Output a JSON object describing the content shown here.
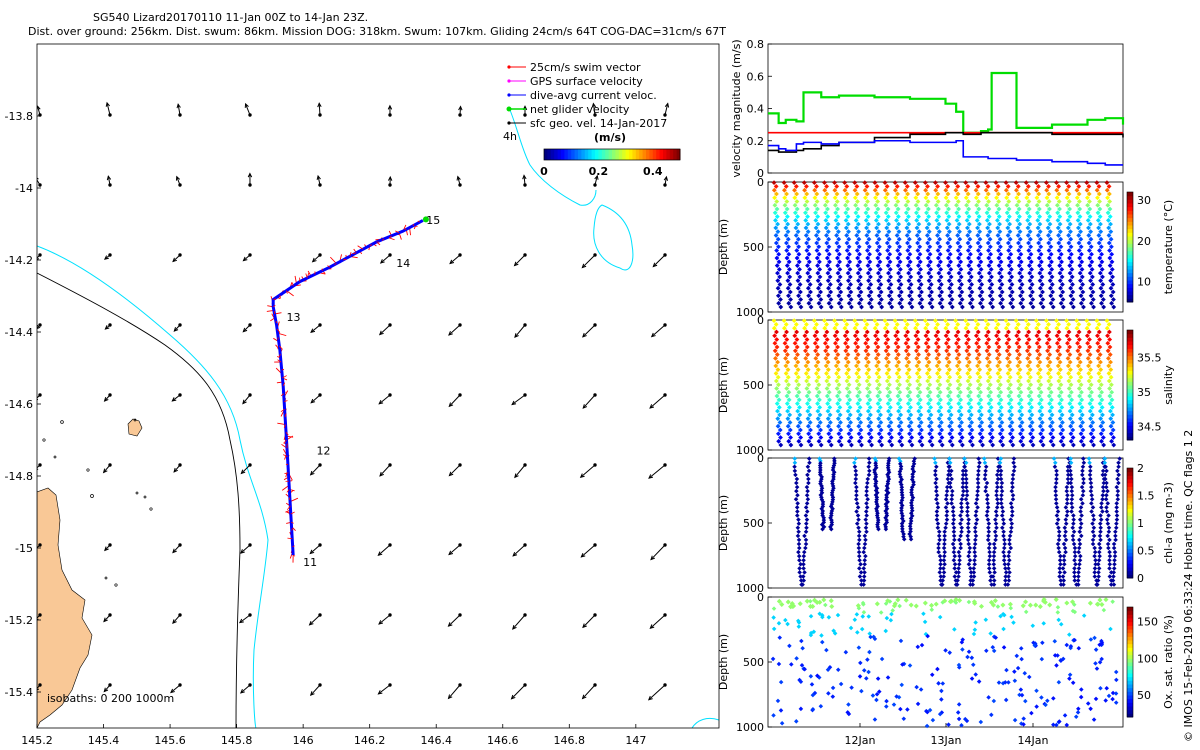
{
  "header": {
    "title": "SG540 Lizard20170110 11-Jan 00Z to 14-Jan 23Z.",
    "subtitle": "Dist. over ground: 256km. Dist. swum: 86km. Mission DOG: 318km. Swum: 107km. Gliding 24cm/s 64T COG-DAC=31cm/s 67T"
  },
  "colors": {
    "land": "#f9c896",
    "coast_cyan": "#00e1ff",
    "isobath_black": "#000000",
    "track_blue": "#0000ff",
    "swim_red": "#ff0000",
    "gps_magenta": "#ff00ff",
    "net_green": "#00dd00"
  },
  "chart_data": [
    {
      "id": "map",
      "type": "scatter",
      "title": "Glider track map",
      "xlabel": "",
      "ylabel": "",
      "xlim": [
        145.2,
        147.25
      ],
      "ylim": [
        -15.5,
        -13.6
      ],
      "x_ticks": [
        "145.2",
        "145.4",
        "145.6",
        "145.8",
        "146",
        "146.2",
        "146.4",
        "146.6",
        "146.8",
        "147"
      ],
      "y_ticks": [
        "-13.8",
        "-14",
        "-14.2",
        "-14.4",
        "-14.6",
        "-14.8",
        "-15",
        "-15.2",
        "-15.4"
      ],
      "legend": {
        "position": "top-right",
        "items": [
          {
            "label": "25cm/s swim vector",
            "color": "#ff0000"
          },
          {
            "label": "GPS surface velocity",
            "color": "#ff00ff"
          },
          {
            "label": "dive-avg current veloc.",
            "color": "#0000ff"
          },
          {
            "label": "net glider velocity",
            "color": "#00dd00"
          },
          {
            "label": "sfc geo. vel. 14-Jan-2017",
            "color": "#000000"
          }
        ],
        "label_4h": "4h"
      },
      "colorbar": {
        "label": "(m/s)",
        "ticks": [
          "0",
          "0.2",
          "0.4"
        ],
        "range": [
          0,
          0.5
        ]
      },
      "isobath_label": "isobaths: 0   200  1000m",
      "track": {
        "lons": [
          145.97,
          145.96,
          145.95,
          145.94,
          145.93,
          145.92,
          145.91,
          145.91,
          145.99,
          146.08,
          146.16,
          146.22,
          146.3,
          146.36
        ],
        "lats": [
          -15.02,
          -14.86,
          -14.7,
          -14.55,
          -14.45,
          -14.38,
          -14.33,
          -14.31,
          -14.26,
          -14.22,
          -14.18,
          -14.15,
          -14.12,
          -14.09
        ]
      },
      "day_labels": [
        {
          "text": "11",
          "lon": 146.0,
          "lat": -15.05
        },
        {
          "text": "12",
          "lon": 146.04,
          "lat": -14.74
        },
        {
          "text": "13",
          "lon": 145.95,
          "lat": -14.37
        },
        {
          "text": "14",
          "lon": 146.28,
          "lat": -14.22
        },
        {
          "text": "15",
          "lon": 146.37,
          "lat": -14.1
        }
      ]
    },
    {
      "id": "velocity",
      "type": "line",
      "ylabel": "velocity magnitude (m/s)",
      "ylim": [
        0,
        0.8
      ],
      "y_ticks": [
        "0",
        "0.2",
        "0.4",
        "0.6",
        "0.8"
      ],
      "x": [
        0,
        0.03,
        0.05,
        0.08,
        0.1,
        0.15,
        0.2,
        0.3,
        0.4,
        0.5,
        0.53,
        0.55,
        0.6,
        0.62,
        0.63,
        0.7,
        0.8,
        0.9,
        0.95,
        1.0
      ],
      "series": [
        {
          "name": "net glider velocity",
          "color": "#00dd00",
          "values": [
            0.37,
            0.31,
            0.33,
            0.32,
            0.5,
            0.47,
            0.48,
            0.47,
            0.46,
            0.43,
            0.38,
            0.25,
            0.26,
            0.27,
            0.62,
            0.28,
            0.3,
            0.33,
            0.34,
            0.3
          ]
        },
        {
          "name": "swim 25cm/s",
          "color": "#ff0000",
          "values": [
            0.25,
            0.25,
            0.25,
            0.25,
            0.25,
            0.25,
            0.25,
            0.25,
            0.25,
            0.25,
            0.25,
            0.25,
            0.25,
            0.25,
            0.25,
            0.25,
            0.25,
            0.25,
            0.25,
            0.25
          ]
        },
        {
          "name": "surface geostrophic",
          "color": "#000000",
          "values": [
            0.14,
            0.13,
            0.13,
            0.14,
            0.15,
            0.17,
            0.19,
            0.22,
            0.24,
            0.25,
            0.25,
            0.24,
            0.25,
            0.25,
            0.25,
            0.25,
            0.24,
            0.24,
            0.24,
            0.22
          ]
        },
        {
          "name": "dive-avg current",
          "color": "#0000ff",
          "values": [
            0.17,
            0.15,
            0.14,
            0.18,
            0.19,
            0.18,
            0.19,
            0.2,
            0.19,
            0.19,
            0.2,
            0.1,
            0.1,
            0.09,
            0.09,
            0.08,
            0.07,
            0.06,
            0.05,
            0.05
          ]
        }
      ]
    },
    {
      "id": "temperature",
      "type": "scatter",
      "ylabel": "Depth (m)",
      "colorbar_label": "temperature (°C)",
      "colorbar_ticks": [
        "10",
        "20",
        "30"
      ],
      "color_range": [
        5,
        32
      ],
      "ylim": [
        1000,
        0
      ],
      "y_ticks": [
        "0",
        "500",
        "1000"
      ],
      "profile_count": 34
    },
    {
      "id": "salinity",
      "type": "scatter",
      "ylabel": "Depth (m)",
      "colorbar_label": "salinity",
      "colorbar_ticks": [
        "34.5",
        "35",
        "35.5"
      ],
      "color_range": [
        34.3,
        35.9
      ],
      "ylim": [
        1000,
        0
      ],
      "y_ticks": [
        "0",
        "500",
        "1000"
      ],
      "profile_count": 34
    },
    {
      "id": "chla",
      "type": "scatter",
      "ylabel": "Depth (m)",
      "colorbar_label": "chl-a (mg m-3)",
      "colorbar_ticks": [
        "0",
        "0.5",
        "1",
        "1.5",
        "2"
      ],
      "color_range": [
        0,
        2
      ],
      "ylim": [
        1000,
        0
      ],
      "y_ticks": [
        "0",
        "500",
        "1000"
      ]
    },
    {
      "id": "oxygen",
      "type": "scatter",
      "ylabel": "Depth (m)",
      "colorbar_label": "Ox. sat. ratio (%)",
      "colorbar_ticks": [
        "50",
        "100",
        "150"
      ],
      "color_range": [
        20,
        170
      ],
      "ylim": [
        1000,
        0
      ],
      "y_ticks": [
        "0",
        "500",
        "1000"
      ],
      "x_tick_labels": [
        "12Jan",
        "13Jan",
        "14Jan"
      ]
    }
  ],
  "footer": {
    "imos_credit": "© IMOS 15-Feb-2019 06:33:24 Hobart time. QC flags 1  2"
  }
}
